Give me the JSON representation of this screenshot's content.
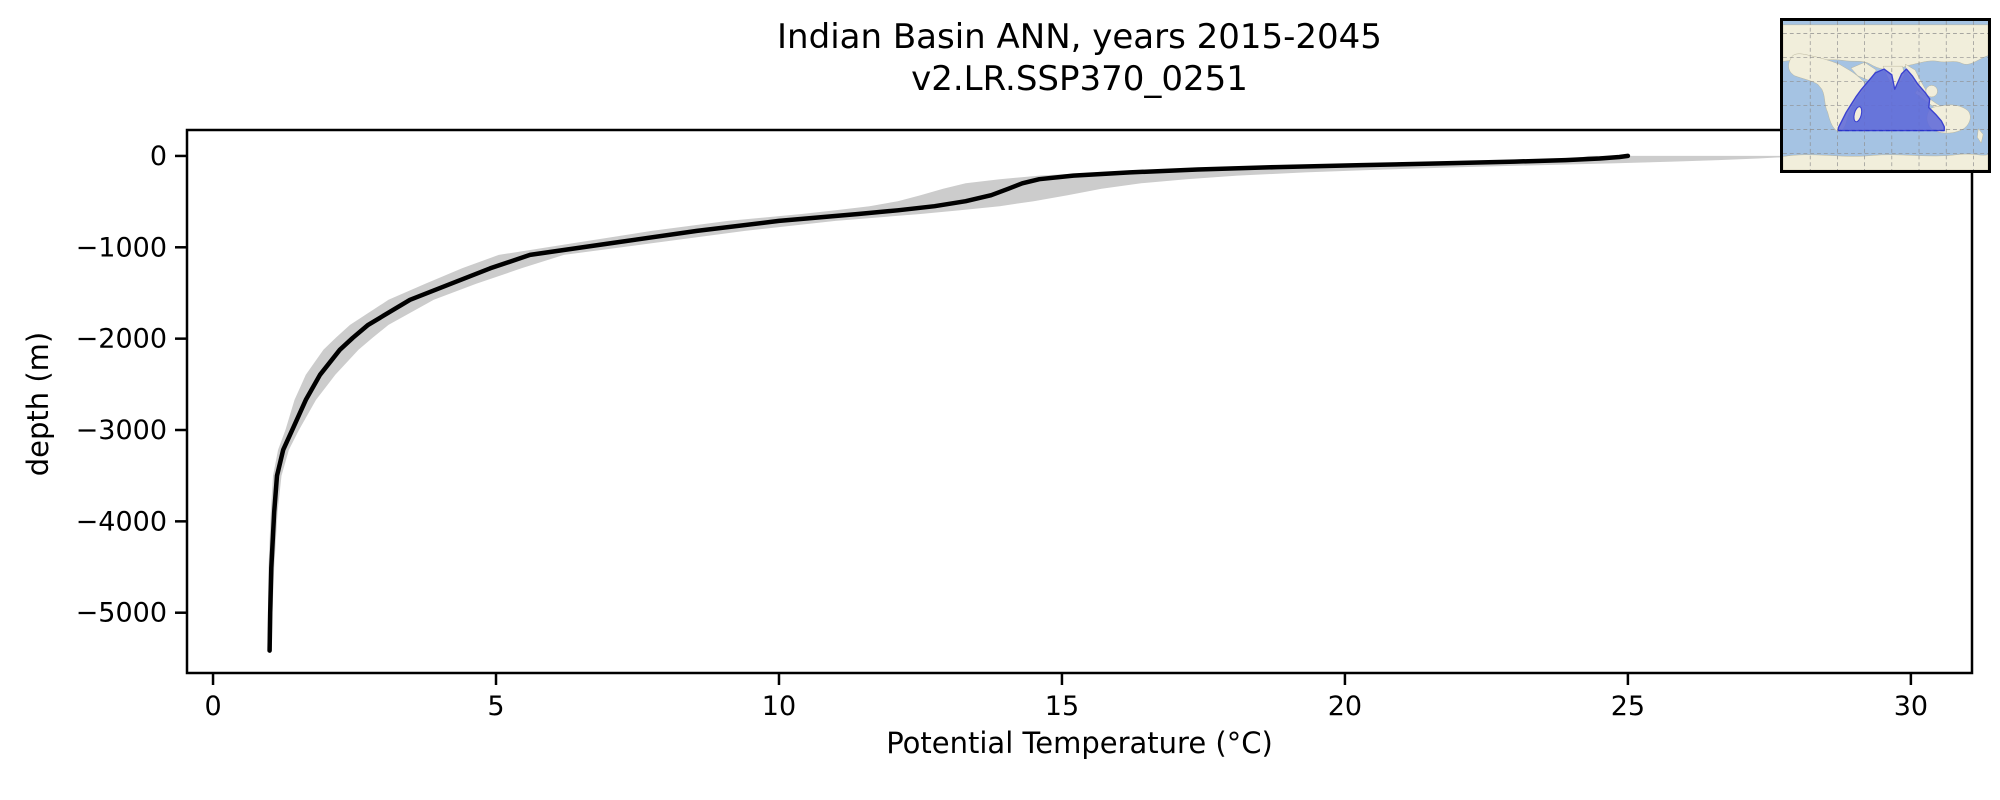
{
  "title": {
    "line1": "Indian Basin ANN, years 2015-2045",
    "line2": "v2.LR.SSP370_0251"
  },
  "axes": {
    "xlabel": "Potential Temperature (°C)",
    "ylabel": "depth (m)"
  },
  "chart_data": {
    "type": "line",
    "title": "Indian Basin ANN, years 2015-2045 v2.LR.SSP370_0251",
    "xlabel": "Potential Temperature (°C)",
    "ylabel": "depth (m)",
    "xlim": [
      -0.46,
      31.08
    ],
    "ylim": [
      -5660,
      284
    ],
    "grid": false,
    "legend": "none",
    "xticks": {
      "values": [
        0,
        5,
        10,
        15,
        20,
        25,
        30
      ],
      "labels": [
        "0",
        "5",
        "10",
        "15",
        "20",
        "25",
        "30"
      ]
    },
    "yticks": {
      "values": [
        0,
        -1000,
        -2000,
        -3000,
        -4000,
        -5000
      ],
      "labels": [
        "0",
        "−1000",
        "−2000",
        "−3000",
        "−4000",
        "−5000"
      ]
    },
    "depth_m": [
      0,
      -12,
      -28,
      -45,
      -62,
      -80,
      -100,
      -122,
      -148,
      -180,
      -215,
      -255,
      -300,
      -360,
      -430,
      -495,
      -550,
      -595,
      -635,
      -711,
      -821,
      -952,
      -1083,
      -1230,
      -1400,
      -1575,
      -1849,
      -1991,
      -2122,
      -2396,
      -2670,
      -2998,
      -3217,
      -3500,
      -3895,
      -4507,
      -5000,
      -5415
    ],
    "series": [
      {
        "name": "mean potential temperature (degC)",
        "values": [
          25.0,
          24.85,
          24.5,
          23.9,
          23.0,
          21.8,
          20.3,
          18.8,
          17.4,
          16.2,
          15.2,
          14.6,
          14.3,
          14.05,
          13.75,
          13.3,
          12.75,
          12.1,
          11.4,
          10.0,
          8.55,
          7.07,
          5.6,
          4.9,
          4.2,
          3.48,
          2.74,
          2.47,
          2.24,
          1.89,
          1.64,
          1.4,
          1.24,
          1.13,
          1.08,
          1.03,
          1.01,
          1.0
        ]
      },
      {
        "name": "envelope max (degC)",
        "values": [
          28.0,
          27.8,
          27.3,
          26.6,
          25.8,
          24.8,
          23.5,
          22.1,
          20.7,
          19.3,
          18.1,
          17.2,
          16.4,
          15.7,
          15.1,
          14.5,
          13.9,
          13.2,
          12.5,
          11.0,
          9.4,
          7.8,
          6.2,
          5.45,
          4.65,
          3.9,
          3.1,
          2.82,
          2.57,
          2.16,
          1.82,
          1.52,
          1.34,
          1.21,
          1.14,
          1.08,
          1.05,
          1.04
        ]
      },
      {
        "name": "envelope min (degC)",
        "values": [
          24.3,
          24.2,
          23.9,
          23.3,
          22.4,
          21.2,
          19.8,
          18.3,
          16.9,
          15.6,
          14.6,
          13.9,
          13.3,
          12.9,
          12.5,
          12.1,
          11.6,
          11.0,
          10.4,
          9.1,
          7.75,
          6.4,
          5.05,
          4.4,
          3.75,
          3.1,
          2.42,
          2.17,
          1.95,
          1.64,
          1.44,
          1.28,
          1.15,
          1.06,
          1.02,
          0.98,
          0.97,
          0.96
        ]
      }
    ],
    "colors": {
      "mean_line": "#000000",
      "envelope_fill": "#cccccc",
      "spine": "#000000",
      "tick_label": "#000000"
    }
  },
  "inset": {
    "label": "Indian Ocean basin location map",
    "colors": {
      "ocean": "#a5c3e3",
      "land": "#f1eedb",
      "basin_fill": "#5e6ad8",
      "basin_outline": "#3a41d0",
      "gridline": "#8f8f8f",
      "border": "#000000"
    }
  }
}
